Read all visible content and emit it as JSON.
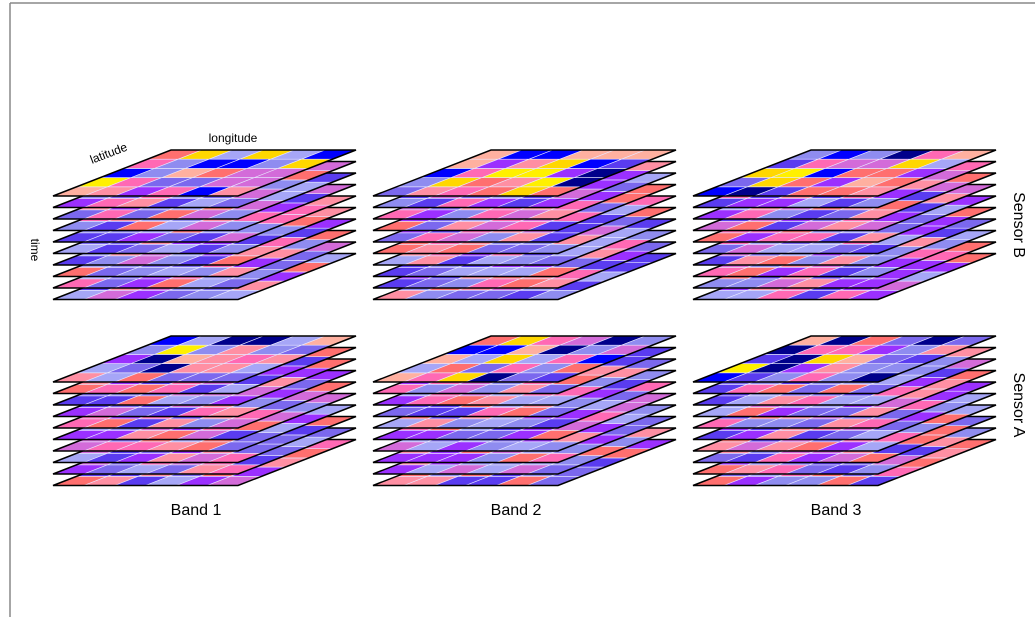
{
  "axis_labels": {
    "longitude": "longitude",
    "latitude": "latitude",
    "time": "time"
  },
  "columns": [
    {
      "label": "Band 1"
    },
    {
      "label": "Band 2"
    },
    {
      "label": "Band 3"
    }
  ],
  "rows": [
    {
      "label": "Sensor B"
    },
    {
      "label": "Sensor A"
    }
  ],
  "cube": {
    "time_layers": 10,
    "grid_rows": 5,
    "grid_cols": 6
  },
  "palette": [
    "#00008b",
    "#0000ff",
    "#5a3cf0",
    "#9b30ff",
    "#7b68ee",
    "#8f8cf0",
    "#a6a6f7",
    "#d36bd9",
    "#ff69b4",
    "#ff8fa3",
    "#ff6f6f",
    "#ffb0a0",
    "#ffd700",
    "#fff000"
  ]
}
